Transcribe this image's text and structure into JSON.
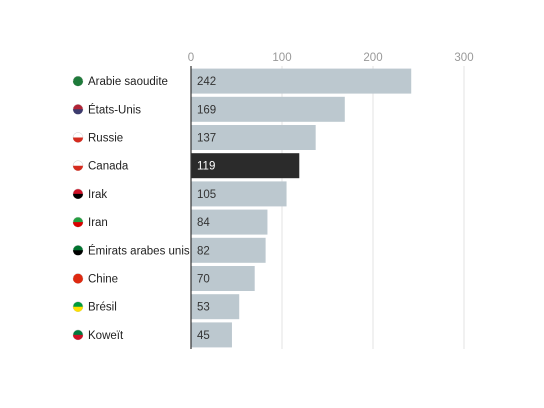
{
  "chart_data": {
    "type": "bar",
    "orientation": "horizontal",
    "categories": [
      "Arabie saoudite",
      "États-Unis",
      "Russie",
      "Canada",
      "Irak",
      "Iran",
      "Émirats arabes unis",
      "Chine",
      "Brésil",
      "Koweït"
    ],
    "values": [
      242,
      169,
      137,
      119,
      105,
      84,
      82,
      70,
      53,
      45
    ],
    "colors": [
      "#bcc8cf",
      "#bcc8cf",
      "#bcc8cf",
      "#2b2b2b",
      "#bcc8cf",
      "#bcc8cf",
      "#bcc8cf",
      "#bcc8cf",
      "#bcc8cf",
      "#bcc8cf"
    ],
    "xlim": [
      0,
      300
    ],
    "xticks": [
      0,
      100,
      200,
      300
    ],
    "grid": true
  }
}
